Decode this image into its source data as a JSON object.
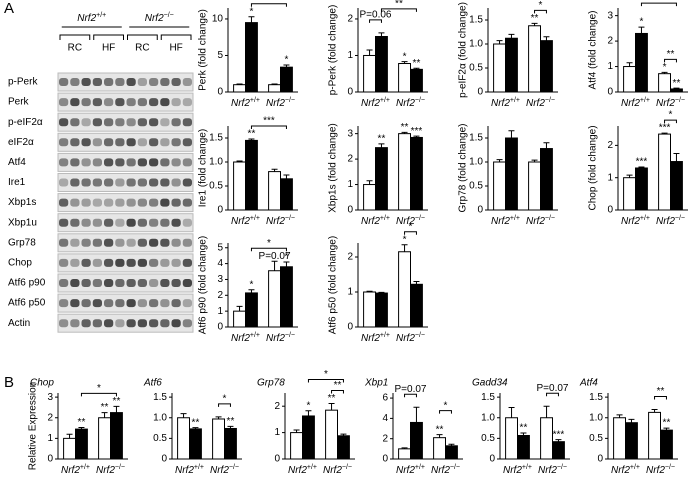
{
  "panels": [
    "A",
    "B"
  ],
  "blot": {
    "genotypes": [
      "Nrf2+/+",
      "Nrf2−/−"
    ],
    "diets": [
      "RC",
      "HF",
      "RC",
      "HF"
    ],
    "rows": [
      "p-Perk",
      "Perk",
      "p-eIF2α",
      "eIF2α",
      "Atf4",
      "Ire1",
      "Xbp1s",
      "Xbp1u",
      "Grp78",
      "Chop",
      "Atf6 p90",
      "Atf6 p50",
      "Actin"
    ]
  },
  "chart_data": [
    {
      "type": "bar",
      "ylabel": "Perk (fold change)",
      "categories": [
        "Nrf2+/+",
        "Nrf2−/−"
      ],
      "ylim": [
        0,
        11.5
      ],
      "yticks": [
        0,
        5,
        10
      ],
      "series": [
        {
          "color": "#ffffff",
          "values": [
            1,
            1
          ],
          "errors": [
            0.1,
            0.1
          ],
          "sig": [
            null,
            null
          ]
        },
        {
          "color": "#000000",
          "values": [
            9.5,
            3.4
          ],
          "errors": [
            0.8,
            0.3
          ],
          "sig": [
            "*",
            "*"
          ]
        }
      ],
      "brackets": [
        {
          "label": "**",
          "from": [
            1,
            0
          ],
          "to": [
            1,
            1
          ]
        }
      ]
    },
    {
      "type": "bar",
      "ylabel": "p-Perk (fold change)",
      "categories": [
        "Nrf2+/+",
        "Nrf2−/−"
      ],
      "ylim": [
        0,
        2.3
      ],
      "yticks": [
        0,
        1,
        2
      ],
      "series": [
        {
          "color": "#ffffff",
          "values": [
            1,
            0.78
          ],
          "errors": [
            0.15,
            0.05
          ],
          "sig": [
            null,
            "*"
          ]
        },
        {
          "color": "#000000",
          "values": [
            1.52,
            0.62
          ],
          "errors": [
            0.1,
            0.03
          ],
          "sig": [
            null,
            "**"
          ]
        }
      ],
      "brackets": [
        {
          "label": "P=0.06",
          "from": [
            0,
            0
          ],
          "to": [
            1,
            0
          ]
        },
        {
          "label": "**",
          "from": [
            1,
            0
          ],
          "to": [
            1,
            1
          ]
        }
      ]
    },
    {
      "type": "bar",
      "ylabel": "p-eIF2α (fold change)",
      "categories": [
        "Nrf2+/+",
        "Nrf2−/−"
      ],
      "ylim": [
        0,
        1.75
      ],
      "yticks": [
        0,
        0.5,
        {
          "value": 1,
          "label": "1.0"
        },
        1.5
      ],
      "series": [
        {
          "color": "#ffffff",
          "values": [
            1,
            1.38
          ],
          "errors": [
            0.07,
            0.05
          ],
          "sig": [
            null,
            "**"
          ]
        },
        {
          "color": "#000000",
          "values": [
            1.12,
            1.07
          ],
          "errors": [
            0.08,
            0.08
          ],
          "sig": [
            null,
            null
          ]
        }
      ],
      "brackets": [
        {
          "label": "*",
          "from": [
            0,
            1
          ],
          "to": [
            1,
            1
          ]
        }
      ]
    },
    {
      "type": "bar",
      "ylabel": "Atf4 (fold change)",
      "categories": [
        "Nrf2+/+",
        "Nrf2−/−"
      ],
      "ylim": [
        0,
        3.3
      ],
      "yticks": [
        0,
        1,
        2,
        3
      ],
      "series": [
        {
          "color": "#ffffff",
          "values": [
            1,
            0.72
          ],
          "errors": [
            0.15,
            0.05
          ],
          "sig": [
            null,
            "*"
          ]
        },
        {
          "color": "#000000",
          "values": [
            2.3,
            0.12
          ],
          "errors": [
            0.25,
            0.03
          ],
          "sig": [
            "*",
            "**"
          ]
        }
      ],
      "brackets": [
        {
          "label": "**",
          "from": [
            0,
            1
          ],
          "to": [
            1,
            1
          ]
        },
        {
          "label": "**",
          "from": [
            1,
            0
          ],
          "to": [
            1,
            1
          ]
        }
      ]
    },
    {
      "type": "bar",
      "ylabel": "Ire1 (fold change)",
      "categories": [
        "Nrf2+/+",
        "Nrf2−/−"
      ],
      "ylim": [
        0,
        1.75
      ],
      "yticks": [
        0,
        0.5,
        {
          "value": 1,
          "label": "1.0"
        },
        1.5
      ],
      "series": [
        {
          "color": "#ffffff",
          "values": [
            1,
            0.8
          ],
          "errors": [
            0.02,
            0.05
          ],
          "sig": [
            null,
            null
          ]
        },
        {
          "color": "#000000",
          "values": [
            1.45,
            0.65
          ],
          "errors": [
            0.03,
            0.08
          ],
          "sig": [
            "**",
            null
          ]
        }
      ],
      "brackets": [
        {
          "label": "***",
          "from": [
            1,
            0
          ],
          "to": [
            1,
            1
          ]
        }
      ]
    },
    {
      "type": "bar",
      "ylabel": "Xbp1s (fold change)",
      "categories": [
        "Nrf2+/+",
        "Nrf2−/−"
      ],
      "ylim": [
        0,
        3.3
      ],
      "yticks": [
        0,
        1,
        2,
        3
      ],
      "series": [
        {
          "color": "#ffffff",
          "values": [
            1,
            3
          ],
          "errors": [
            0.15,
            0.05
          ],
          "sig": [
            null,
            "**"
          ]
        },
        {
          "color": "#000000",
          "values": [
            2.45,
            2.85
          ],
          "errors": [
            0.15,
            0.05
          ],
          "sig": [
            "**",
            "***"
          ]
        }
      ],
      "brackets": []
    },
    {
      "type": "bar",
      "ylabel": "Grp78 (fold change)",
      "categories": [
        "Nrf2+/+",
        "Nrf2−/−"
      ],
      "ylim": [
        0,
        1.75
      ],
      "yticks": [
        0,
        0.5,
        {
          "value": 1,
          "label": "1.0"
        },
        1.5
      ],
      "series": [
        {
          "color": "#ffffff",
          "values": [
            1,
            1
          ],
          "errors": [
            0.05,
            0.04
          ],
          "sig": [
            null,
            null
          ]
        },
        {
          "color": "#000000",
          "values": [
            1.5,
            1.28
          ],
          "errors": [
            0.15,
            0.12
          ],
          "sig": [
            null,
            null
          ]
        }
      ],
      "brackets": []
    },
    {
      "type": "bar",
      "ylabel": "Chop (fold change)",
      "categories": [
        "Nrf2+/+",
        "Nrf2−/−"
      ],
      "ylim": [
        0,
        2.6
      ],
      "yticks": [
        0,
        1,
        2
      ],
      "series": [
        {
          "color": "#ffffff",
          "values": [
            1,
            2.35
          ],
          "errors": [
            0.08,
            0.03
          ],
          "sig": [
            null,
            "***"
          ]
        },
        {
          "color": "#000000",
          "values": [
            1.3,
            1.5
          ],
          "errors": [
            0.03,
            0.25
          ],
          "sig": [
            "***",
            null
          ]
        }
      ],
      "brackets": [
        {
          "label": "*",
          "from": [
            0,
            1
          ],
          "to": [
            1,
            1
          ]
        }
      ]
    },
    {
      "type": "bar",
      "ylabel": "Atf6 p90 (fold change)",
      "categories": [
        "Nrf2+/+",
        "Nrf2−/−"
      ],
      "ylim": [
        0,
        5.3
      ],
      "yticks": [
        0,
        1,
        2,
        3,
        4,
        5
      ],
      "series": [
        {
          "color": "#ffffff",
          "values": [
            1,
            3.55
          ],
          "errors": [
            0.3,
            0.6
          ],
          "sig": [
            null,
            "P=0.07"
          ]
        },
        {
          "color": "#000000",
          "values": [
            2.15,
            3.8
          ],
          "errors": [
            0.2,
            0.3
          ],
          "sig": [
            "*",
            "*"
          ]
        }
      ],
      "brackets": [
        {
          "label": "*",
          "from": [
            1,
            0
          ],
          "to": [
            1,
            1
          ]
        }
      ]
    },
    {
      "type": "bar",
      "ylabel": "Atf6 p50 (fold change)",
      "categories": [
        "Nrf2+/+",
        "Nrf2−/−"
      ],
      "ylim": [
        0,
        2.4
      ],
      "yticks": [
        0,
        1,
        2
      ],
      "series": [
        {
          "color": "#ffffff",
          "values": [
            1,
            2.15
          ],
          "errors": [
            0.02,
            0.2
          ],
          "sig": [
            null,
            "*"
          ]
        },
        {
          "color": "#000000",
          "values": [
            0.97,
            1.22
          ],
          "errors": [
            0.02,
            0.08
          ],
          "sig": [
            null,
            null
          ]
        }
      ],
      "brackets": [
        {
          "label": "*",
          "from": [
            0,
            1
          ],
          "to": [
            1,
            1
          ]
        }
      ]
    },
    {
      "type": "bar",
      "title": "Chop",
      "ylabel": "Relative Expression",
      "categories": [
        "Nrf2+/+",
        "Nrf2−/−"
      ],
      "ylim": [
        0,
        3.2
      ],
      "yticks": [
        0,
        1,
        2,
        3
      ],
      "series": [
        {
          "color": "#ffffff",
          "values": [
            1,
            2
          ],
          "errors": [
            0.2,
            0.25
          ],
          "sig": [
            null,
            "**"
          ]
        },
        {
          "color": "#000000",
          "values": [
            1.45,
            2.25
          ],
          "errors": [
            0.08,
            0.3
          ],
          "sig": [
            "**",
            "**"
          ]
        }
      ],
      "brackets": [
        {
          "label": "*",
          "from": [
            1,
            0
          ],
          "to": [
            1,
            1
          ]
        }
      ]
    },
    {
      "type": "bar",
      "title": "Atf6",
      "categories": [
        "Nrf2+/+",
        "Nrf2−/−"
      ],
      "ylim": [
        0,
        1.6
      ],
      "yticks": [
        0,
        0.5,
        {
          "value": 1,
          "label": "1.0"
        },
        1.5
      ],
      "series": [
        {
          "color": "#ffffff",
          "values": [
            1,
            0.97
          ],
          "errors": [
            0.1,
            0.05
          ],
          "sig": [
            null,
            null
          ]
        },
        {
          "color": "#000000",
          "values": [
            0.73,
            0.74
          ],
          "errors": [
            0.03,
            0.05
          ],
          "sig": [
            "**",
            "**"
          ]
        }
      ],
      "brackets": [
        {
          "label": "*",
          "from": [
            0,
            1
          ],
          "to": [
            1,
            1
          ]
        }
      ]
    },
    {
      "type": "bar",
      "title": "Grp78",
      "categories": [
        "Nrf2+/+",
        "Nrf2−/−"
      ],
      "ylim": [
        0,
        2.5
      ],
      "yticks": [
        0,
        1,
        2
      ],
      "series": [
        {
          "color": "#ffffff",
          "values": [
            1,
            1.85
          ],
          "errors": [
            0.1,
            0.25
          ],
          "sig": [
            null,
            "**"
          ]
        },
        {
          "color": "#000000",
          "values": [
            1.63,
            0.88
          ],
          "errors": [
            0.2,
            0.06
          ],
          "sig": [
            "*",
            null
          ]
        }
      ],
      "brackets": [
        {
          "label": "**",
          "from": [
            0,
            1
          ],
          "to": [
            1,
            1
          ]
        },
        {
          "label": "*",
          "from": [
            1,
            0
          ],
          "to": [
            1,
            1
          ]
        }
      ]
    },
    {
      "type": "bar",
      "title": "Xbp1",
      "categories": [
        "Nrf2+/+",
        "Nrf2−/−"
      ],
      "ylim": [
        0,
        6.5
      ],
      "yticks": [
        0,
        2,
        4,
        6
      ],
      "series": [
        {
          "color": "#ffffff",
          "values": [
            1,
            2.1
          ],
          "errors": [
            0.1,
            0.3
          ],
          "sig": [
            null,
            "**"
          ]
        },
        {
          "color": "#000000",
          "values": [
            3.6,
            1.3
          ],
          "errors": [
            1.5,
            0.15
          ],
          "sig": [
            null,
            null
          ]
        }
      ],
      "brackets": [
        {
          "label": "P=0.07",
          "from": [
            0,
            0
          ],
          "to": [
            1,
            0
          ]
        },
        {
          "label": "*",
          "from": [
            0,
            1
          ],
          "to": [
            1,
            1
          ]
        }
      ]
    },
    {
      "type": "bar",
      "title": "Gadd34",
      "categories": [
        "Nrf2+/+",
        "Nrf2−/−"
      ],
      "ylim": [
        0,
        1.6
      ],
      "yticks": [
        0,
        0.5,
        {
          "value": 1,
          "label": "1.0"
        },
        1.5
      ],
      "series": [
        {
          "color": "#ffffff",
          "values": [
            1,
            1
          ],
          "errors": [
            0.25,
            0.28
          ],
          "sig": [
            null,
            null
          ]
        },
        {
          "color": "#000000",
          "values": [
            0.57,
            0.42
          ],
          "errors": [
            0.06,
            0.05
          ],
          "sig": [
            "**",
            "***"
          ]
        }
      ],
      "brackets": [
        {
          "label": "P=0.07",
          "from": [
            0,
            1
          ],
          "to": [
            1,
            1
          ]
        }
      ]
    },
    {
      "type": "bar",
      "title": "Atf4",
      "categories": [
        "Nrf2+/+",
        "Nrf2−/−"
      ],
      "ylim": [
        0,
        1.6
      ],
      "yticks": [
        0,
        0.5,
        {
          "value": 1,
          "label": "1.0"
        },
        1.5
      ],
      "series": [
        {
          "color": "#ffffff",
          "values": [
            1,
            1.13
          ],
          "errors": [
            0.07,
            0.07
          ],
          "sig": [
            null,
            null
          ]
        },
        {
          "color": "#000000",
          "values": [
            0.88,
            0.7
          ],
          "errors": [
            0.08,
            0.05
          ],
          "sig": [
            null,
            "**"
          ]
        }
      ],
      "brackets": [
        {
          "label": "**",
          "from": [
            0,
            1
          ],
          "to": [
            1,
            1
          ]
        }
      ]
    }
  ]
}
